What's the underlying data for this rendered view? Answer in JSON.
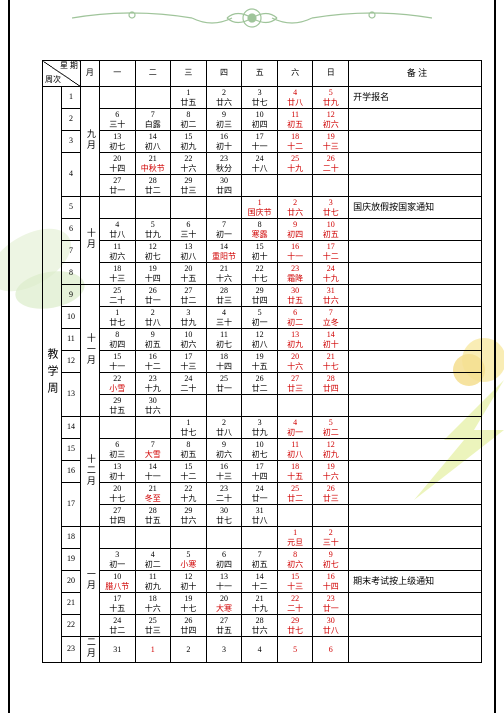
{
  "ornament_color": "#9fc49a",
  "deco_colors": {
    "leaf": "#cde8c0",
    "flower": "#f5e08a",
    "arrow": "#d9e86a"
  },
  "header": {
    "diag_top": "星 期",
    "diag_bottom": "周次",
    "month_label": "月",
    "days": [
      "一",
      "二",
      "三",
      "四",
      "五",
      "六",
      "日"
    ],
    "note": "备  注"
  },
  "side_label": "教学周",
  "months": [
    "九月",
    "十月",
    "十一月",
    "十二月",
    "一月",
    "二月"
  ],
  "rows": [
    {
      "wk": "1",
      "cells": [
        [
          "",
          ""
        ],
        [
          "1",
          "廿五"
        ],
        [
          "2",
          "廿六"
        ],
        [
          "3",
          "廿七"
        ],
        [
          "4",
          "廿八",
          "r"
        ],
        [
          "5",
          "廿九",
          "r"
        ]
      ],
      "note": "开学报名"
    },
    {
      "wk": "2",
      "cells": [
        [
          "6",
          "三十"
        ],
        [
          "7",
          "白露"
        ],
        [
          "8",
          "初二"
        ],
        [
          "9",
          "初三"
        ],
        [
          "10",
          "初四"
        ],
        [
          "11",
          "初五",
          "r"
        ],
        [
          "12",
          "初六",
          "r"
        ]
      ]
    },
    {
      "wk": "3",
      "mon": 0,
      "cells": [
        [
          "13",
          "初七"
        ],
        [
          "14",
          "初八"
        ],
        [
          "15",
          "初九"
        ],
        [
          "16",
          "初十"
        ],
        [
          "17",
          "十一"
        ],
        [
          "18",
          "十二",
          "r"
        ],
        [
          "19",
          "十三",
          "r"
        ]
      ]
    },
    {
      "wk": "4",
      "cells": [
        [
          "20",
          "十四"
        ],
        [
          "21",
          "中秋节",
          "rb"
        ],
        [
          "22",
          "十六"
        ],
        [
          "23",
          "秋分"
        ],
        [
          "24",
          "十八"
        ],
        [
          "25",
          "十九",
          "r"
        ],
        [
          "26",
          "二十",
          "r"
        ]
      ]
    },
    {
      "wk": "",
      "cells": [
        [
          "27",
          "廿一"
        ],
        [
          "28",
          "廿二"
        ],
        [
          "29",
          "廿三"
        ],
        [
          "30",
          "廿四"
        ],
        [
          "",
          ""
        ],
        [
          "",
          ""
        ],
        [
          "",
          ""
        ]
      ]
    },
    {
      "wk": "5",
      "cells": [
        [
          "",
          ""
        ],
        [
          "",
          ""
        ],
        [
          "",
          ""
        ],
        [
          "",
          ""
        ],
        [
          "1",
          "国庆节",
          "r"
        ],
        [
          "2",
          "廿六",
          "r"
        ],
        [
          "3",
          "廿七",
          "r"
        ]
      ],
      "note": "国庆放假按国家通知"
    },
    {
      "wk": "6",
      "cells": [
        [
          "4",
          "廿八"
        ],
        [
          "5",
          "廿九"
        ],
        [
          "6",
          "三十"
        ],
        [
          "7",
          "初一"
        ],
        [
          "8",
          "寒露",
          "rb"
        ],
        [
          "9",
          "初四",
          "r"
        ],
        [
          "10",
          "初五",
          "r"
        ]
      ]
    },
    {
      "wk": "7",
      "mon": 1,
      "cells": [
        [
          "11",
          "初六"
        ],
        [
          "12",
          "初七"
        ],
        [
          "13",
          "初八"
        ],
        [
          "14",
          "重阳节",
          "rb"
        ],
        [
          "15",
          "初十"
        ],
        [
          "16",
          "十一",
          "r"
        ],
        [
          "17",
          "十二",
          "r"
        ]
      ]
    },
    {
      "wk": "8",
      "cells": [
        [
          "18",
          "十三"
        ],
        [
          "19",
          "十四"
        ],
        [
          "20",
          "十五"
        ],
        [
          "21",
          "十六"
        ],
        [
          "22",
          "十七"
        ],
        [
          "23",
          "霜降",
          "r"
        ],
        [
          "24",
          "十九",
          "r"
        ]
      ]
    },
    {
      "wk": "9",
      "cells": [
        [
          "25",
          "二十"
        ],
        [
          "26",
          "廿一"
        ],
        [
          "27",
          "廿二"
        ],
        [
          "28",
          "廿三"
        ],
        [
          "29",
          "廿四"
        ],
        [
          "30",
          "廿五",
          "r"
        ],
        [
          "31",
          "廿六",
          "r"
        ]
      ]
    },
    {
      "wk": "10",
      "cells": [
        [
          "1",
          "廿七"
        ],
        [
          "2",
          "廿八"
        ],
        [
          "3",
          "廿九"
        ],
        [
          "4",
          "三十"
        ],
        [
          "5",
          "初一"
        ],
        [
          "6",
          "初二",
          "r"
        ],
        [
          "7",
          "立冬",
          "r"
        ]
      ]
    },
    {
      "wk": "11",
      "cells": [
        [
          "8",
          "初四"
        ],
        [
          "9",
          "初五"
        ],
        [
          "10",
          "初六"
        ],
        [
          "11",
          "初七"
        ],
        [
          "12",
          "初八"
        ],
        [
          "13",
          "初九",
          "r"
        ],
        [
          "14",
          "初十",
          "r"
        ]
      ]
    },
    {
      "wk": "12",
      "mon": 2,
      "cells": [
        [
          "15",
          "十一"
        ],
        [
          "16",
          "十二"
        ],
        [
          "17",
          "十三"
        ],
        [
          "18",
          "十四"
        ],
        [
          "19",
          "十五"
        ],
        [
          "20",
          "十六",
          "r"
        ],
        [
          "21",
          "十七",
          "r"
        ]
      ]
    },
    {
      "wk": "13",
      "cells": [
        [
          "22",
          "小雪",
          "rb"
        ],
        [
          "23",
          "十九"
        ],
        [
          "24",
          "二十"
        ],
        [
          "25",
          "廿一"
        ],
        [
          "26",
          "廿二"
        ],
        [
          "27",
          "廿三",
          "r"
        ],
        [
          "28",
          "廿四",
          "r"
        ]
      ]
    },
    {
      "wk": "",
      "cells": [
        [
          "29",
          "廿五"
        ],
        [
          "30",
          "廿六"
        ],
        [
          "",
          ""
        ],
        [
          "",
          ""
        ],
        [
          "",
          ""
        ],
        [
          "",
          ""
        ],
        [
          "",
          ""
        ]
      ]
    },
    {
      "wk": "14",
      "cells": [
        [
          "",
          ""
        ],
        [
          "",
          ""
        ],
        [
          "1",
          "廿七"
        ],
        [
          "2",
          "廿八"
        ],
        [
          "3",
          "廿九"
        ],
        [
          "4",
          "初一",
          "r"
        ],
        [
          "5",
          "初二",
          "r"
        ]
      ]
    },
    {
      "wk": "15",
      "cells": [
        [
          "6",
          "初三"
        ],
        [
          "7",
          "大雪",
          "rb"
        ],
        [
          "8",
          "初五"
        ],
        [
          "9",
          "初六"
        ],
        [
          "10",
          "初七"
        ],
        [
          "11",
          "初八",
          "r"
        ],
        [
          "12",
          "初九",
          "r"
        ]
      ]
    },
    {
      "wk": "16",
      "mon": 3,
      "cells": [
        [
          "13",
          "初十"
        ],
        [
          "14",
          "十一"
        ],
        [
          "15",
          "十二"
        ],
        [
          "16",
          "十三"
        ],
        [
          "17",
          "十四"
        ],
        [
          "18",
          "十五",
          "r"
        ],
        [
          "19",
          "十六",
          "r"
        ]
      ]
    },
    {
      "wk": "17",
      "cells": [
        [
          "20",
          "十七"
        ],
        [
          "21",
          "冬至",
          "rb"
        ],
        [
          "22",
          "十九"
        ],
        [
          "23",
          "二十"
        ],
        [
          "24",
          "廿一"
        ],
        [
          "25",
          "廿二",
          "r"
        ],
        [
          "26",
          "廿三",
          "r"
        ]
      ]
    },
    {
      "wk": "",
      "cells": [
        [
          "27",
          "廿四"
        ],
        [
          "28",
          "廿五"
        ],
        [
          "29",
          "廿六"
        ],
        [
          "30",
          "廿七"
        ],
        [
          "31",
          "廿八"
        ],
        [
          "",
          ""
        ],
        [
          "",
          ""
        ]
      ]
    },
    {
      "wk": "18",
      "cells": [
        [
          "",
          ""
        ],
        [
          "",
          ""
        ],
        [
          "",
          ""
        ],
        [
          "",
          ""
        ],
        [
          "",
          ""
        ],
        [
          "1",
          "元旦",
          "r"
        ],
        [
          "2",
          "三十",
          "r"
        ]
      ]
    },
    {
      "wk": "19",
      "cells": [
        [
          "3",
          "初一"
        ],
        [
          "4",
          "初二"
        ],
        [
          "5",
          "小寒",
          "rb"
        ],
        [
          "6",
          "初四"
        ],
        [
          "7",
          "初五"
        ],
        [
          "8",
          "初六",
          "r"
        ],
        [
          "9",
          "初七",
          "r"
        ]
      ]
    },
    {
      "wk": "20",
      "mon": 4,
      "cells": [
        [
          "10",
          "腊八节",
          "rb"
        ],
        [
          "11",
          "初九"
        ],
        [
          "12",
          "初十"
        ],
        [
          "13",
          "十一"
        ],
        [
          "14",
          "十二"
        ],
        [
          "15",
          "十三",
          "r"
        ],
        [
          "16",
          "十四",
          "r"
        ]
      ],
      "note": "期末考试按上级通知"
    },
    {
      "wk": "21",
      "cells": [
        [
          "17",
          "十五"
        ],
        [
          "18",
          "十六"
        ],
        [
          "19",
          "十七"
        ],
        [
          "20",
          "大寒",
          "rb"
        ],
        [
          "21",
          "十九"
        ],
        [
          "22",
          "二十",
          "r"
        ],
        [
          "23",
          "廿一",
          "r"
        ]
      ]
    },
    {
      "wk": "22",
      "cells": [
        [
          "24",
          "廿二"
        ],
        [
          "25",
          "廿三"
        ],
        [
          "26",
          "廿四"
        ],
        [
          "27",
          "廿五"
        ],
        [
          "28",
          "廿六"
        ],
        [
          "29",
          "廿七",
          "r"
        ],
        [
          "30",
          "廿八",
          "r"
        ]
      ]
    },
    {
      "wk": "23",
      "mon": 5,
      "single": true,
      "cells": [
        [
          "31",
          "",
          "rb"
        ],
        [
          "1",
          "",
          "r"
        ],
        [
          "2",
          ""
        ],
        [
          "3",
          ""
        ],
        [
          "4",
          ""
        ],
        [
          "5",
          "",
          "r"
        ],
        [
          "6",
          "",
          "r"
        ]
      ]
    }
  ]
}
